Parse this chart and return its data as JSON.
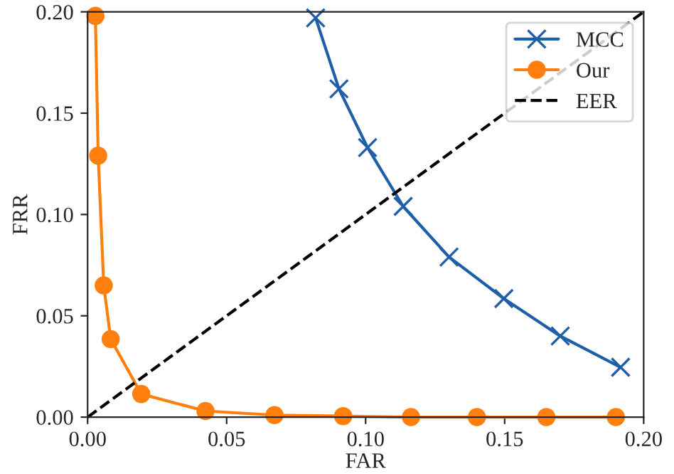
{
  "chart_data": {
    "type": "line",
    "xlabel": "FAR",
    "ylabel": "FRR",
    "xlim": [
      0,
      0.2
    ],
    "ylim": [
      0,
      0.2
    ],
    "xticks": [
      {
        "value": 0,
        "label": "0.00"
      },
      {
        "value": 0.05,
        "label": "0.05"
      },
      {
        "value": 0.1,
        "label": "0.10"
      },
      {
        "value": 0.15,
        "label": "0.15"
      },
      {
        "value": 0.2,
        "label": "0.20"
      }
    ],
    "yticks": [
      {
        "value": 0,
        "label": "0.00"
      },
      {
        "value": 0.05,
        "label": "0.05"
      },
      {
        "value": 0.1,
        "label": "0.10"
      },
      {
        "value": 0.15,
        "label": "0.15"
      },
      {
        "value": 0.2,
        "label": "0.20"
      }
    ],
    "legend": "top right",
    "grid": false,
    "series": [
      {
        "name": "MCC",
        "color": "#1f5fa8",
        "marker": "cross",
        "line_style": "solid",
        "x": [
          0.082,
          0.0904,
          0.1007,
          0.1135,
          0.13,
          0.1497,
          0.17,
          0.1917
        ],
        "values": [
          0.197,
          0.162,
          0.133,
          0.104,
          0.079,
          0.0585,
          0.04,
          0.0246
        ]
      },
      {
        "name": "Our",
        "color": "#ff7f0e",
        "marker": "circle",
        "line_style": "solid",
        "x": [
          0.0028,
          0.0038,
          0.0058,
          0.0083,
          0.0193,
          0.0424,
          0.0672,
          0.0919,
          0.1163,
          0.14,
          0.165,
          0.19
        ],
        "values": [
          0.198,
          0.129,
          0.065,
          0.0385,
          0.0114,
          0.003,
          0.001,
          0.0005,
          0,
          0,
          0,
          0
        ]
      },
      {
        "name": "EER",
        "color": "#000000",
        "marker": "none",
        "line_style": "dashed",
        "x": [
          0,
          0.2
        ],
        "values": [
          0,
          0.2
        ]
      }
    ]
  }
}
